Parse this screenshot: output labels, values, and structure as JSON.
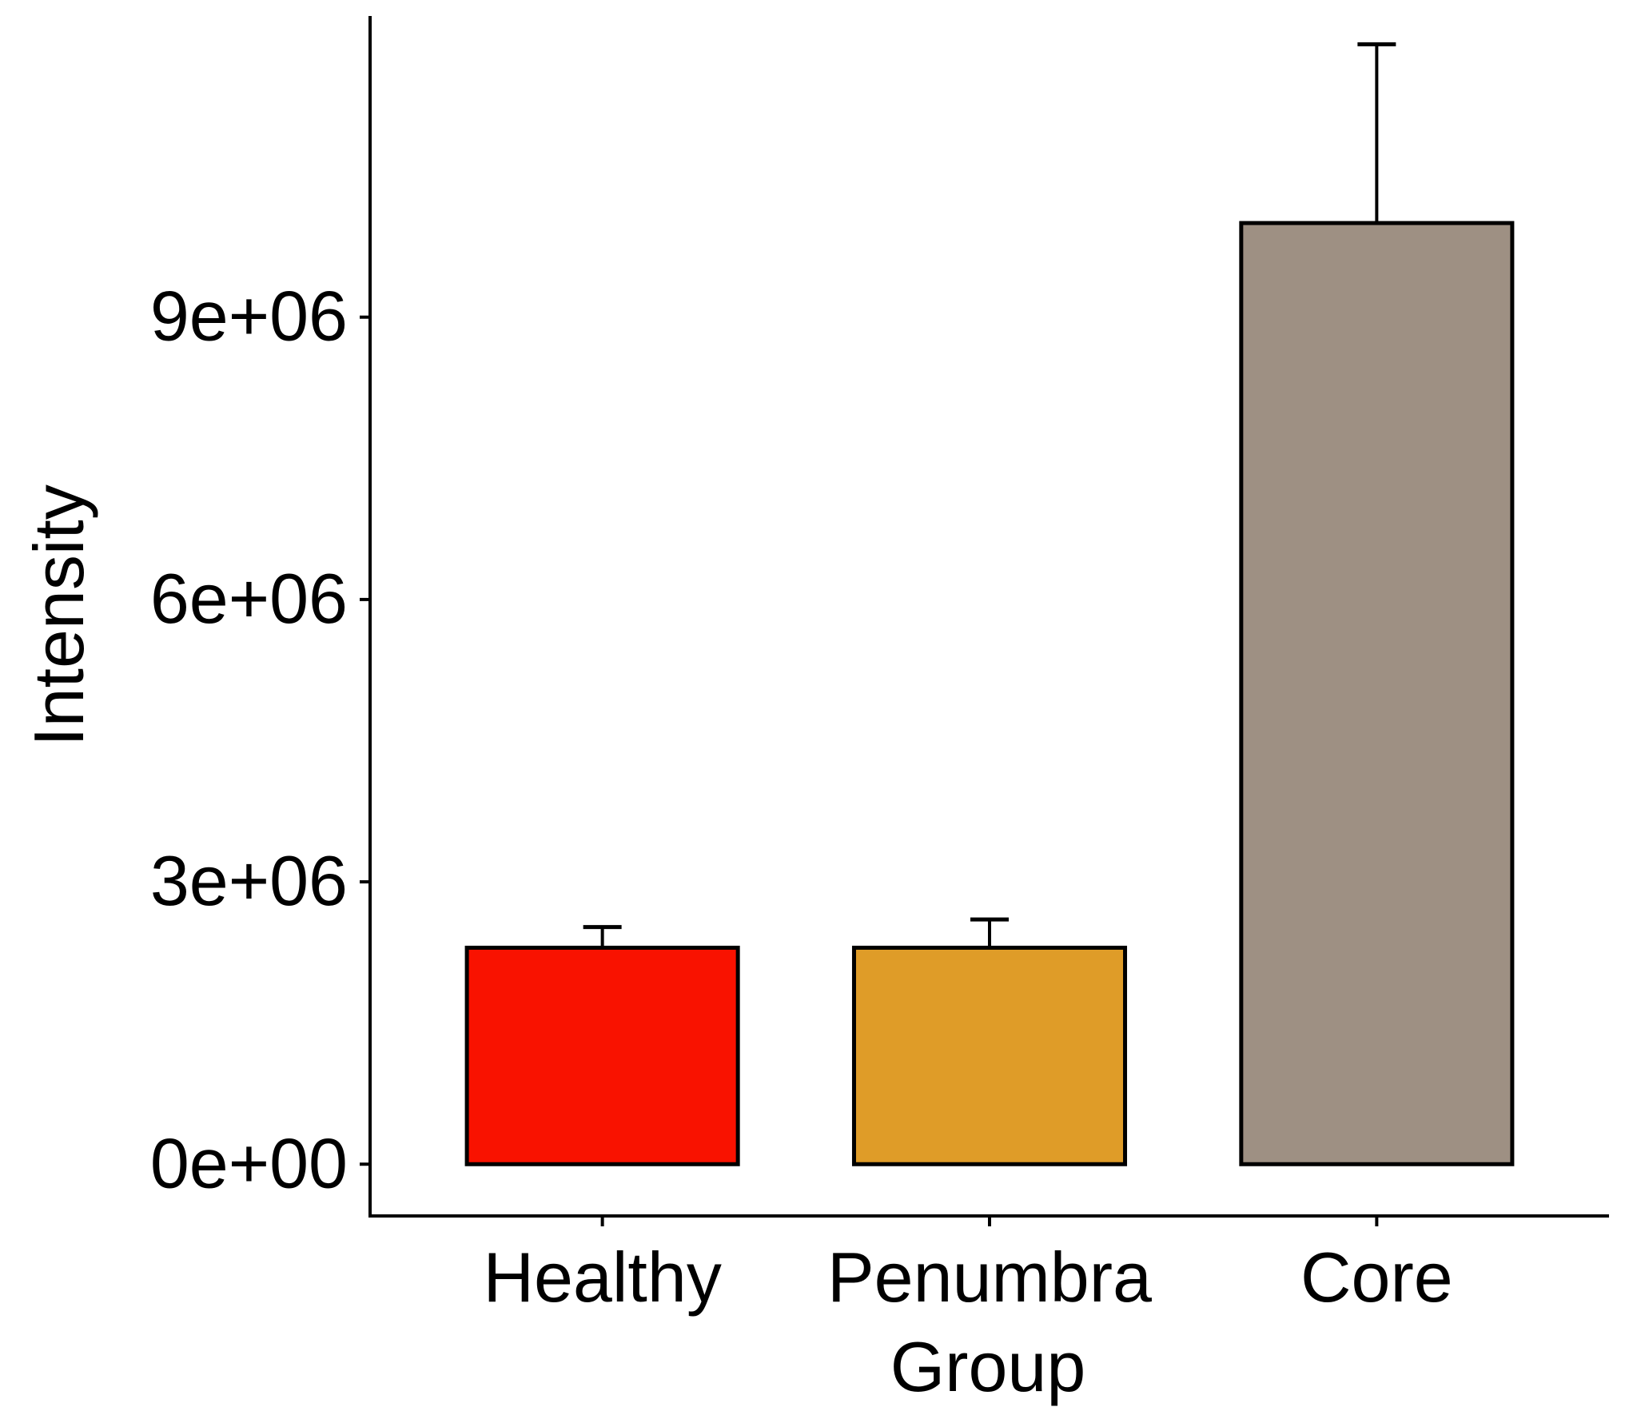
{
  "chart_data": {
    "type": "bar",
    "title": "",
    "xlabel": "Group",
    "ylabel": "Intensity",
    "categories": [
      "Healthy",
      "Penumbra",
      "Core"
    ],
    "values": [
      2300000,
      2300000,
      10000000
    ],
    "error_upper": [
      2520000,
      2600000,
      11900000
    ],
    "colors": [
      "#F91200",
      "#DF9C28",
      "#9E9083"
    ],
    "ylim": [
      -550000,
      12200000
    ],
    "yticks": [
      0,
      3000000,
      6000000,
      9000000
    ],
    "ytick_labels": [
      "0e+00",
      "3e+06",
      "6e+06",
      "9e+06"
    ],
    "grid": false,
    "legend": "none"
  }
}
